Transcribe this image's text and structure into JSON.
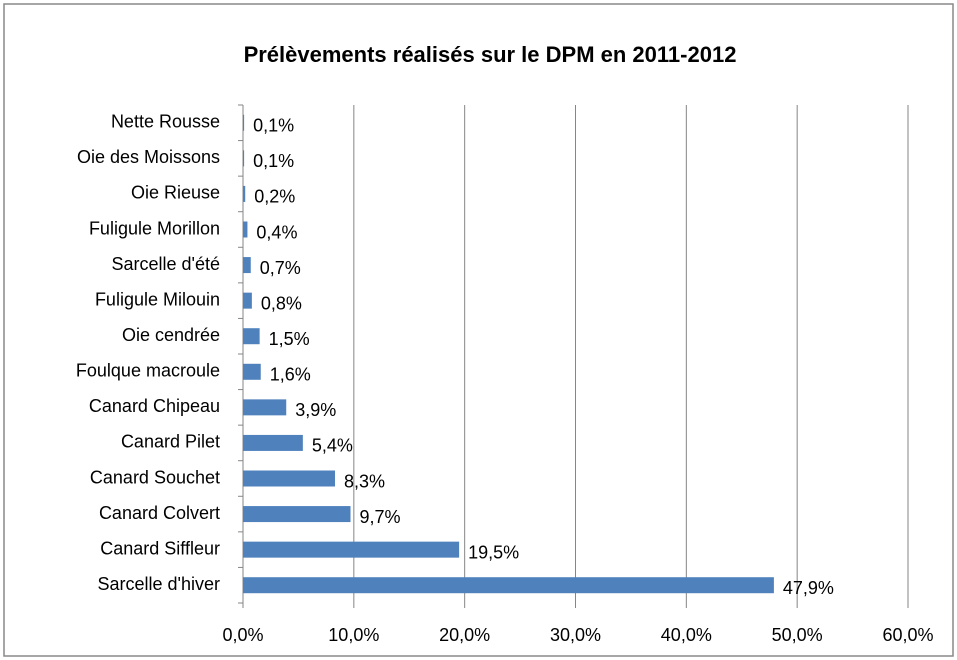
{
  "chart_data": {
    "type": "bar",
    "orientation": "horizontal",
    "title": "Prélèvements réalisés sur le DPM en 2011-2012",
    "categories": [
      "Nette Rousse",
      "Oie des Moissons",
      "Oie Rieuse",
      "Fuligule Morillon",
      "Sarcelle d'été",
      "Fuligule Milouin",
      "Oie cendrée",
      "Foulque macroule",
      "Canard Chipeau",
      "Canard Pilet",
      "Canard Souchet",
      "Canard Colvert",
      "Canard Siffleur",
      "Sarcelle d'hiver"
    ],
    "values": [
      0.1,
      0.1,
      0.2,
      0.4,
      0.7,
      0.8,
      1.5,
      1.6,
      3.9,
      5.4,
      8.3,
      9.7,
      19.5,
      47.9
    ],
    "value_labels": [
      "0,1%",
      "0,1%",
      "0,2%",
      "0,4%",
      "0,7%",
      "0,8%",
      "1,5%",
      "1,6%",
      "3,9%",
      "5,4%",
      "8,3%",
      "9,7%",
      "19,5%",
      "47,9%"
    ],
    "color": "#4f81bd",
    "xlim": [
      0,
      60
    ],
    "xticks": [
      {
        "value": 0,
        "label": "0,0%"
      },
      {
        "value": 10,
        "label": "10,0%"
      },
      {
        "value": 20,
        "label": "20,0%"
      },
      {
        "value": 30,
        "label": "30,0%"
      },
      {
        "value": 40,
        "label": "40,0%"
      },
      {
        "value": 50,
        "label": "50,0%"
      },
      {
        "value": 60,
        "label": "60,0%"
      }
    ],
    "grid": true
  }
}
